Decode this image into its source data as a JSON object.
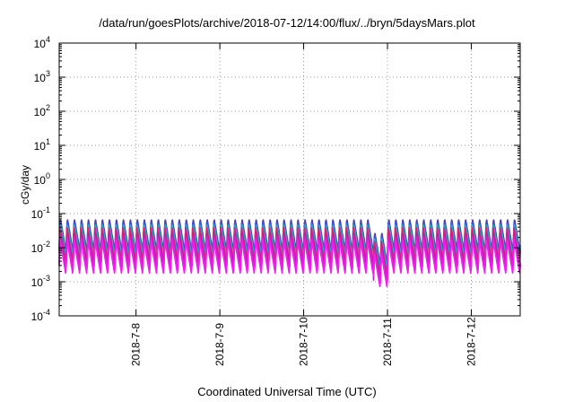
{
  "chart_data": {
    "type": "line",
    "title": "/data/run/goesPlots/archive/2018-07-12/14:00/flux/../bryn/5daysMars.plot",
    "xlabel": "Coordinated Universal Time (UTC)",
    "ylabel": "cGy/day",
    "yscale": "log",
    "ylim": [
      0.0001,
      10000
    ],
    "ytick_exponents": [
      "4",
      "3",
      "2",
      "1",
      "0",
      "-1",
      "-2",
      "-3",
      "-4"
    ],
    "xlim": [
      "2018-07-07 02:00",
      "2018-07-12 14:00"
    ],
    "xtick_labels": [
      "2018-7-8",
      "2018-7-9",
      "2018-7-10",
      "2018-7-11",
      "2018-7-12"
    ],
    "grid": true,
    "legend": "none",
    "waveform": {
      "cycles_per_day": 12,
      "peak_to_trough_ratio": 10
    },
    "dip": {
      "start": "2018-07-10 20:00",
      "end": "2018-07-11 00:00",
      "factor": 0.4
    },
    "series": [
      {
        "color": "#1f3dd9",
        "peak": 0.07
      },
      {
        "color": "#6a3aa8",
        "peak": 0.065
      },
      {
        "color": "#2f5ed6",
        "peak": 0.055
      },
      {
        "color": "#14a0e0",
        "peak": 0.05
      },
      {
        "color": "#19c4b0",
        "peak": 0.045
      },
      {
        "color": "#e0207a",
        "peak": 0.04
      },
      {
        "color": "#c0208f",
        "peak": 0.028
      },
      {
        "color": "#d21fd2",
        "peak": 0.022
      },
      {
        "color": "#f01ff0",
        "peak": 0.017
      }
    ]
  }
}
